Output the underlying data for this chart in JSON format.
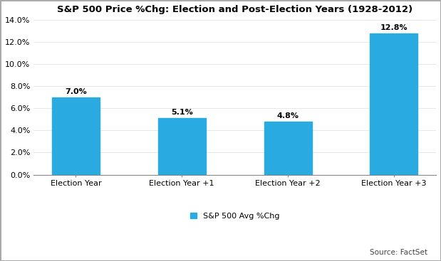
{
  "title": "S&P 500 Price %Chg: Election and Post-Election Years (1928-2012)",
  "categories": [
    "Election Year",
    "Election Year +1",
    "Election Year +2",
    "Election Year +3"
  ],
  "values": [
    7.0,
    5.1,
    4.8,
    12.8
  ],
  "labels": [
    "7.0%",
    "5.1%",
    "4.8%",
    "12.8%"
  ],
  "bar_color": "#29ABE2",
  "legend_label": "S&P 500 Avg %Chg",
  "source_text": "Source: FactSet",
  "ylim": [
    0,
    0.14
  ],
  "yticks": [
    0.0,
    0.02,
    0.04,
    0.06,
    0.08,
    0.1,
    0.12,
    0.14
  ],
  "ytick_labels": [
    "0.0%",
    "2.0%",
    "4.0%",
    "6.0%",
    "8.0%",
    "10.0%",
    "12.0%",
    "14.0%"
  ],
  "title_fontsize": 9.5,
  "label_fontsize": 8,
  "tick_fontsize": 8,
  "legend_fontsize": 8,
  "source_fontsize": 7.5,
  "background_color": "#ffffff",
  "bar_width": 0.45,
  "border_color": "#aaaaaa"
}
